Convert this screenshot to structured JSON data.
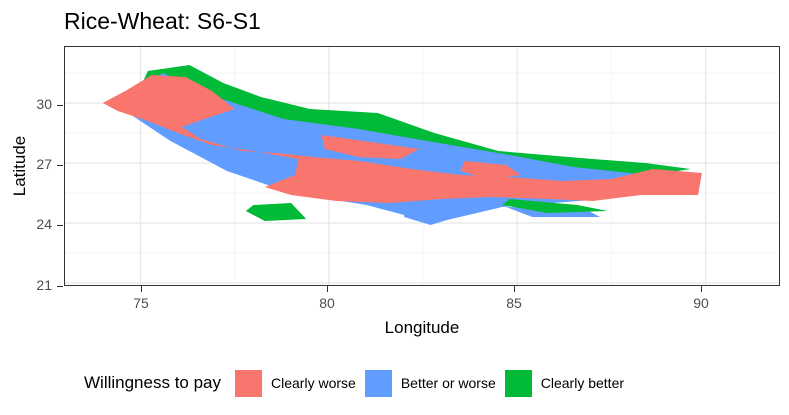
{
  "title": "Rice-Wheat: S6-S1",
  "x_axis": {
    "label": "Longitude",
    "ticks": [
      "75",
      "80",
      "85",
      "90"
    ]
  },
  "y_axis": {
    "label": "Latitude",
    "ticks": [
      "21",
      "24",
      "27",
      "30"
    ]
  },
  "legend": {
    "title": "Willingness to pay",
    "items": [
      {
        "label": "Clearly worse",
        "color": "#F8766D"
      },
      {
        "label": "Better or worse",
        "color": "#619CFF"
      },
      {
        "label": "Clearly better",
        "color": "#00BA38"
      }
    ]
  },
  "map_data": {
    "lon_range": [
      73,
      92
    ],
    "lat_range": [
      20.8,
      32.8
    ],
    "gridlines": true,
    "regions": [
      {
        "class": "Clearly better",
        "color": "#00BA38",
        "polygon": [
          [
            75.2,
            31.6
          ],
          [
            76.3,
            31.9
          ],
          [
            77.2,
            31.0
          ],
          [
            78.2,
            30.3
          ],
          [
            79.5,
            29.7
          ],
          [
            81.3,
            29.5
          ],
          [
            82.8,
            28.5
          ],
          [
            84.5,
            27.6
          ],
          [
            87.0,
            27.2
          ],
          [
            88.4,
            27.0
          ],
          [
            89.6,
            26.7
          ],
          [
            87.2,
            26.0
          ],
          [
            84.0,
            25.2
          ],
          [
            81.0,
            25.8
          ],
          [
            78.5,
            26.8
          ],
          [
            76.0,
            28.5
          ],
          [
            74.8,
            30.0
          ]
        ]
      },
      {
        "class": "Clearly better",
        "color": "#00BA38",
        "polygon": [
          [
            78.0,
            24.9
          ],
          [
            79.0,
            25.0
          ],
          [
            79.4,
            24.2
          ],
          [
            78.3,
            24.1
          ],
          [
            77.8,
            24.6
          ]
        ]
      },
      {
        "class": "Better or worse",
        "color": "#619CFF",
        "polygon": [
          [
            74.7,
            30.4
          ],
          [
            75.6,
            31.5
          ],
          [
            77.0,
            30.3
          ],
          [
            78.8,
            29.2
          ],
          [
            80.8,
            28.7
          ],
          [
            82.3,
            28.2
          ],
          [
            84.8,
            27.4
          ],
          [
            86.5,
            26.8
          ],
          [
            88.5,
            26.4
          ],
          [
            87.3,
            25.2
          ],
          [
            84.6,
            24.8
          ],
          [
            82.8,
            24.0
          ],
          [
            81.0,
            24.9
          ],
          [
            79.0,
            25.5
          ],
          [
            77.3,
            26.6
          ],
          [
            75.8,
            28.1
          ],
          [
            74.6,
            29.6
          ]
        ]
      },
      {
        "class": "Clearly worse",
        "color": "#F8766D",
        "polygon": [
          [
            74.0,
            30.0
          ],
          [
            74.6,
            30.6
          ],
          [
            75.3,
            31.4
          ],
          [
            76.2,
            31.3
          ],
          [
            76.9,
            30.6
          ],
          [
            77.5,
            29.7
          ],
          [
            76.7,
            29.2
          ],
          [
            76.1,
            28.8
          ],
          [
            76.6,
            28.2
          ],
          [
            77.7,
            27.6
          ],
          [
            78.6,
            27.5
          ],
          [
            79.6,
            27.3
          ],
          [
            80.8,
            27.1
          ],
          [
            82.2,
            26.7
          ],
          [
            83.5,
            26.4
          ],
          [
            84.8,
            26.3
          ],
          [
            86.2,
            26.1
          ],
          [
            87.5,
            26.2
          ],
          [
            88.6,
            26.7
          ],
          [
            89.9,
            26.5
          ],
          [
            89.8,
            25.4
          ],
          [
            88.3,
            25.4
          ],
          [
            87.0,
            25.1
          ],
          [
            85.8,
            25.2
          ],
          [
            84.3,
            25.3
          ],
          [
            83.0,
            25.2
          ],
          [
            81.6,
            25.0
          ],
          [
            80.2,
            25.1
          ],
          [
            79.0,
            25.4
          ],
          [
            78.3,
            25.8
          ],
          [
            79.1,
            26.4
          ],
          [
            79.2,
            27.2
          ],
          [
            78.0,
            27.6
          ],
          [
            76.9,
            27.9
          ],
          [
            76.0,
            28.5
          ],
          [
            75.2,
            29.1
          ],
          [
            74.4,
            29.6
          ]
        ]
      },
      {
        "class": "Clearly worse",
        "color": "#F8766D",
        "polygon": [
          [
            79.8,
            28.4
          ],
          [
            81.3,
            28.0
          ],
          [
            82.4,
            27.7
          ],
          [
            81.9,
            27.2
          ],
          [
            80.8,
            27.3
          ],
          [
            79.9,
            27.7
          ]
        ]
      },
      {
        "class": "Clearly worse",
        "color": "#F8766D",
        "polygon": [
          [
            83.6,
            27.1
          ],
          [
            84.7,
            26.9
          ],
          [
            85.1,
            26.4
          ],
          [
            84.2,
            26.2
          ],
          [
            83.5,
            26.6
          ]
        ]
      },
      {
        "class": "Better or worse",
        "color": "#619CFF",
        "polygon": [
          [
            82.0,
            24.9
          ],
          [
            83.6,
            24.9
          ],
          [
            83.4,
            24.3
          ],
          [
            82.7,
            23.9
          ],
          [
            82.0,
            24.3
          ]
        ]
      },
      {
        "class": "Better or worse",
        "color": "#619CFF",
        "polygon": [
          [
            84.7,
            24.8
          ],
          [
            86.8,
            24.7
          ],
          [
            87.2,
            24.3
          ],
          [
            85.4,
            24.3
          ]
        ]
      },
      {
        "class": "Clearly better",
        "color": "#00BA38",
        "polygon": [
          [
            84.8,
            25.2
          ],
          [
            86.6,
            24.9
          ],
          [
            87.4,
            24.6
          ],
          [
            85.8,
            24.5
          ],
          [
            84.6,
            24.9
          ]
        ]
      }
    ]
  }
}
